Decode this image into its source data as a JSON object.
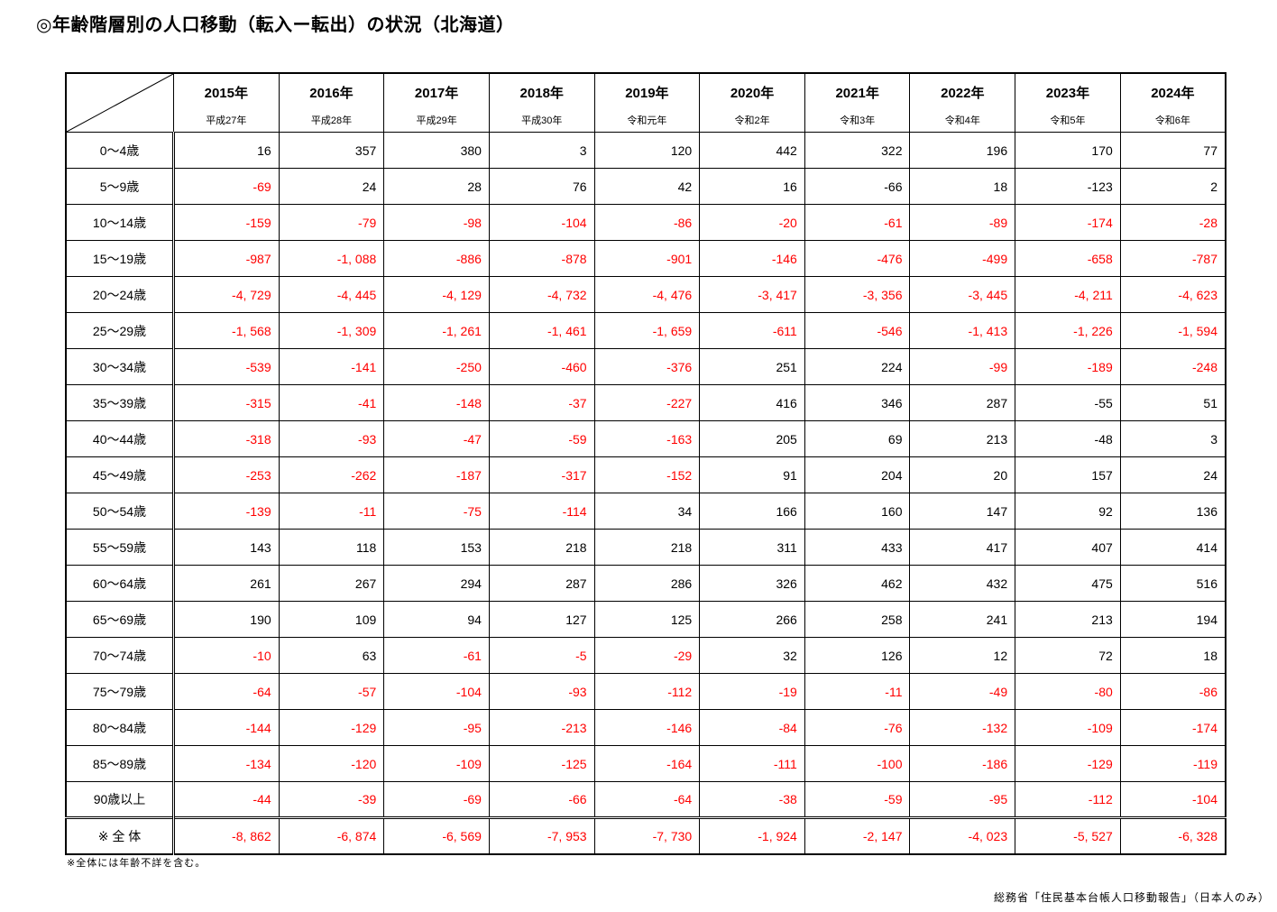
{
  "title": "◎年齢階層別の人口移動（転入ー転出）の状況（北海道）",
  "footnote": "※全体には年齢不詳を含む。",
  "source": "総務省「住民基本台帳人口移動報告」（日本人のみ）",
  "colors": {
    "red_negative": "#ff0000",
    "text": "#000000",
    "border": "#000000",
    "background": "#ffffff"
  },
  "chart_data": {
    "type": "table",
    "title": "年齢階層別の人口移動（転入ー転出）の状況（北海道）",
    "columns": [
      {
        "year": "2015年",
        "era": "平成27年"
      },
      {
        "year": "2016年",
        "era": "平成28年"
      },
      {
        "year": "2017年",
        "era": "平成29年"
      },
      {
        "year": "2018年",
        "era": "平成30年"
      },
      {
        "year": "2019年",
        "era": "令和元年"
      },
      {
        "year": "2020年",
        "era": "令和2年"
      },
      {
        "year": "2021年",
        "era": "令和3年"
      },
      {
        "year": "2022年",
        "era": "令和4年"
      },
      {
        "year": "2023年",
        "era": "令和5年"
      },
      {
        "year": "2024年",
        "era": "令和6年"
      }
    ],
    "rows": [
      {
        "label": "0～4歳",
        "values": [
          "16",
          "357",
          "380",
          "3",
          "120",
          "442",
          "322",
          "196",
          "170",
          "77"
        ],
        "red": [
          false,
          false,
          false,
          false,
          false,
          false,
          false,
          false,
          false,
          false
        ]
      },
      {
        "label": "5～9歳",
        "values": [
          "-69",
          "24",
          "28",
          "76",
          "42",
          "16",
          "-66",
          "18",
          "-123",
          "2"
        ],
        "red": [
          true,
          false,
          false,
          false,
          false,
          false,
          false,
          false,
          false,
          false
        ]
      },
      {
        "label": "10～14歳",
        "values": [
          "-159",
          "-79",
          "-98",
          "-104",
          "-86",
          "-20",
          "-61",
          "-89",
          "-174",
          "-28"
        ],
        "red": [
          true,
          true,
          true,
          true,
          true,
          true,
          true,
          true,
          true,
          true
        ]
      },
      {
        "label": "15～19歳",
        "values": [
          "-987",
          "-1, 088",
          "-886",
          "-878",
          "-901",
          "-146",
          "-476",
          "-499",
          "-658",
          "-787"
        ],
        "red": [
          true,
          true,
          true,
          true,
          true,
          true,
          true,
          true,
          true,
          true
        ]
      },
      {
        "label": "20～24歳",
        "values": [
          "-4, 729",
          "-4, 445",
          "-4, 129",
          "-4, 732",
          "-4, 476",
          "-3, 417",
          "-3, 356",
          "-3, 445",
          "-4, 211",
          "-4, 623"
        ],
        "red": [
          true,
          true,
          true,
          true,
          true,
          true,
          true,
          true,
          true,
          true
        ]
      },
      {
        "label": "25～29歳",
        "values": [
          "-1, 568",
          "-1, 309",
          "-1, 261",
          "-1, 461",
          "-1, 659",
          "-611",
          "-546",
          "-1, 413",
          "-1, 226",
          "-1, 594"
        ],
        "red": [
          true,
          true,
          true,
          true,
          true,
          true,
          true,
          true,
          true,
          true
        ]
      },
      {
        "label": "30～34歳",
        "values": [
          "-539",
          "-141",
          "-250",
          "-460",
          "-376",
          "251",
          "224",
          "-99",
          "-189",
          "-248"
        ],
        "red": [
          true,
          true,
          true,
          true,
          true,
          false,
          false,
          true,
          true,
          true
        ]
      },
      {
        "label": "35～39歳",
        "values": [
          "-315",
          "-41",
          "-148",
          "-37",
          "-227",
          "416",
          "346",
          "287",
          "-55",
          "51"
        ],
        "red": [
          true,
          true,
          true,
          true,
          true,
          false,
          false,
          false,
          false,
          false
        ]
      },
      {
        "label": "40～44歳",
        "values": [
          "-318",
          "-93",
          "-47",
          "-59",
          "-163",
          "205",
          "69",
          "213",
          "-48",
          "3"
        ],
        "red": [
          true,
          true,
          true,
          true,
          true,
          false,
          false,
          false,
          false,
          false
        ]
      },
      {
        "label": "45～49歳",
        "values": [
          "-253",
          "-262",
          "-187",
          "-317",
          "-152",
          "91",
          "204",
          "20",
          "157",
          "24"
        ],
        "red": [
          true,
          true,
          true,
          true,
          true,
          false,
          false,
          false,
          false,
          false
        ]
      },
      {
        "label": "50～54歳",
        "values": [
          "-139",
          "-11",
          "-75",
          "-114",
          "34",
          "166",
          "160",
          "147",
          "92",
          "136"
        ],
        "red": [
          true,
          true,
          true,
          true,
          false,
          false,
          false,
          false,
          false,
          false
        ]
      },
      {
        "label": "55～59歳",
        "values": [
          "143",
          "118",
          "153",
          "218",
          "218",
          "311",
          "433",
          "417",
          "407",
          "414"
        ],
        "red": [
          false,
          false,
          false,
          false,
          false,
          false,
          false,
          false,
          false,
          false
        ]
      },
      {
        "label": "60～64歳",
        "values": [
          "261",
          "267",
          "294",
          "287",
          "286",
          "326",
          "462",
          "432",
          "475",
          "516"
        ],
        "red": [
          false,
          false,
          false,
          false,
          false,
          false,
          false,
          false,
          false,
          false
        ]
      },
      {
        "label": "65～69歳",
        "values": [
          "190",
          "109",
          "94",
          "127",
          "125",
          "266",
          "258",
          "241",
          "213",
          "194"
        ],
        "red": [
          false,
          false,
          false,
          false,
          false,
          false,
          false,
          false,
          false,
          false
        ]
      },
      {
        "label": "70～74歳",
        "values": [
          "-10",
          "63",
          "-61",
          "-5",
          "-29",
          "32",
          "126",
          "12",
          "72",
          "18"
        ],
        "red": [
          true,
          false,
          true,
          true,
          true,
          false,
          false,
          false,
          false,
          false
        ]
      },
      {
        "label": "75～79歳",
        "values": [
          "-64",
          "-57",
          "-104",
          "-93",
          "-112",
          "-19",
          "-11",
          "-49",
          "-80",
          "-86"
        ],
        "red": [
          true,
          true,
          true,
          true,
          true,
          true,
          true,
          true,
          true,
          true
        ]
      },
      {
        "label": "80～84歳",
        "values": [
          "-144",
          "-129",
          "-95",
          "-213",
          "-146",
          "-84",
          "-76",
          "-132",
          "-109",
          "-174"
        ],
        "red": [
          true,
          true,
          true,
          true,
          true,
          true,
          true,
          true,
          true,
          true
        ]
      },
      {
        "label": "85～89歳",
        "values": [
          "-134",
          "-120",
          "-109",
          "-125",
          "-164",
          "-111",
          "-100",
          "-186",
          "-129",
          "-119"
        ],
        "red": [
          true,
          true,
          true,
          true,
          true,
          true,
          true,
          true,
          true,
          true
        ]
      },
      {
        "label": "90歳以上",
        "values": [
          "-44",
          "-39",
          "-69",
          "-66",
          "-64",
          "-38",
          "-59",
          "-95",
          "-112",
          "-104"
        ],
        "red": [
          true,
          true,
          true,
          true,
          true,
          true,
          true,
          true,
          true,
          true
        ]
      },
      {
        "label": "※ 全 体",
        "total": true,
        "values": [
          "-8, 862",
          "-6, 874",
          "-6, 569",
          "-7, 953",
          "-7, 730",
          "-1, 924",
          "-2, 147",
          "-4, 023",
          "-5, 527",
          "-6, 328"
        ],
        "red": [
          true,
          true,
          true,
          true,
          true,
          true,
          true,
          true,
          true,
          true
        ]
      }
    ]
  }
}
